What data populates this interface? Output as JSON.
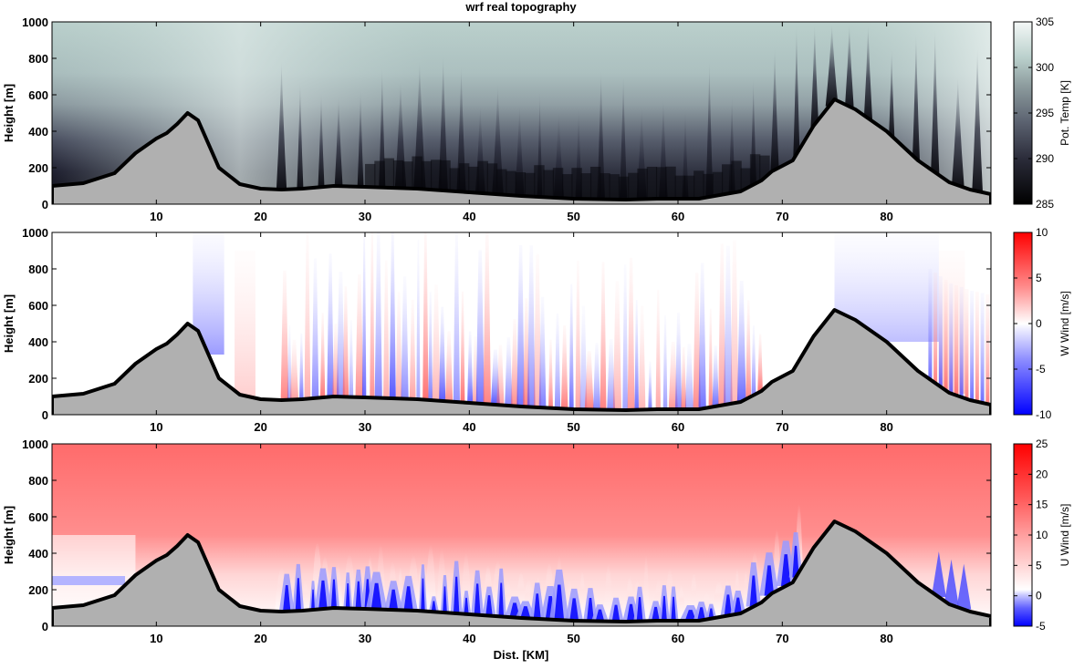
{
  "figure": {
    "title": "wrf real topography",
    "xlabel": "Dist. [KM]"
  },
  "chart_data": [
    {
      "type": "heatmap",
      "name": "pot-temp",
      "xlim": [
        0,
        90
      ],
      "ylim": [
        0,
        1000
      ],
      "x_ticks": [
        "10",
        "20",
        "30",
        "40",
        "50",
        "60",
        "70",
        "80"
      ],
      "y_ticks": [
        "0",
        "200",
        "400",
        "600",
        "800",
        "1000"
      ],
      "ylabel": "Height [m]",
      "colorbar": {
        "label": "Pot. Temp [K]",
        "min": 285,
        "max": 305,
        "ticks": [
          "285",
          "290",
          "295",
          "300",
          "305"
        ],
        "colors": [
          "#000000",
          "#2b2c3a",
          "#5b6270",
          "#8d9c9e",
          "#b9cfcb",
          "#eef4f2"
        ]
      }
    },
    {
      "type": "heatmap",
      "name": "w-wind",
      "xlim": [
        0,
        90
      ],
      "ylim": [
        0,
        1000
      ],
      "x_ticks": [
        "10",
        "20",
        "30",
        "40",
        "50",
        "60",
        "70",
        "80"
      ],
      "y_ticks": [
        "0",
        "200",
        "400",
        "600",
        "800",
        "1000"
      ],
      "ylabel": "Height [m]",
      "colorbar": {
        "label": "W Wind [m/s]",
        "min": -10,
        "max": 10,
        "ticks": [
          "-10",
          "-5",
          "0",
          "5",
          "10"
        ],
        "colors": [
          "#0000ff",
          "#8c8cff",
          "#ffffff",
          "#ff8c8c",
          "#ff0000"
        ]
      }
    },
    {
      "type": "heatmap",
      "name": "u-wind",
      "xlim": [
        0,
        90
      ],
      "ylim": [
        0,
        1000
      ],
      "x_ticks": [
        "10",
        "20",
        "30",
        "40",
        "50",
        "60",
        "70",
        "80"
      ],
      "y_ticks": [
        "0",
        "200",
        "400",
        "600",
        "800",
        "1000"
      ],
      "ylabel": "Height [m]",
      "colorbar": {
        "label": "U Wind [m/s]",
        "min": -5,
        "max": 25,
        "ticks": [
          "-5",
          "0",
          "5",
          "10",
          "15",
          "20",
          "25"
        ],
        "colors": [
          "#0000ff",
          "#b4b4ff",
          "#ffffff",
          "#ffb0b0",
          "#ff5050",
          "#ff0000"
        ]
      }
    }
  ],
  "terrain": {
    "x": [
      0,
      3,
      6,
      8,
      10,
      11,
      12,
      13,
      14,
      15,
      16,
      18,
      20,
      22,
      24,
      27,
      30,
      35,
      40,
      45,
      50,
      55,
      58,
      62,
      66,
      68,
      69,
      71,
      73,
      75,
      77,
      80,
      83,
      86,
      88,
      90
    ],
    "y": [
      100,
      115,
      170,
      280,
      360,
      390,
      440,
      500,
      460,
      330,
      200,
      110,
      85,
      80,
      85,
      100,
      95,
      85,
      65,
      45,
      30,
      25,
      30,
      30,
      70,
      130,
      180,
      240,
      430,
      575,
      520,
      400,
      240,
      120,
      80,
      55
    ]
  }
}
